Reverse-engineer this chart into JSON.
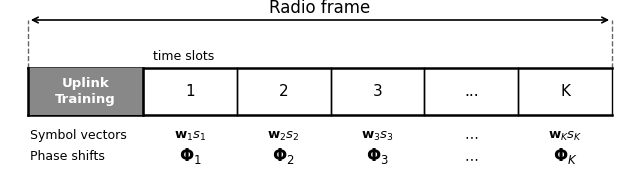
{
  "bg_color": "#ffffff",
  "radio_frame_label": "Radio frame",
  "time_slots_label": "time slots",
  "uplink_label": "Uplink\nTraining",
  "uplink_bg": "#888888",
  "uplink_text_color": "#ffffff",
  "slot_labels": [
    "1",
    "2",
    "3",
    "...",
    "K"
  ],
  "symbol_row_label": "Symbol vectors",
  "phase_row_label": "Phase shifts",
  "symbol_entries": [
    "$\\mathbf{w}_1 s_1$",
    "$\\mathbf{w}_2 s_2$",
    "$\\mathbf{w}_3 s_3$",
    "$\\cdots$",
    "$\\mathbf{w}_K s_K$"
  ],
  "phase_entries": [
    "$\\boldsymbol{\\Phi}_1$",
    "$\\boldsymbol{\\Phi}_2$",
    "$\\boldsymbol{\\Phi}_3$",
    "$\\cdots$",
    "$\\boldsymbol{\\Phi}_K$"
  ],
  "box_line_color": "#000000",
  "arrow_color": "#000000",
  "dashed_color": "#666666",
  "text_color": "#000000"
}
